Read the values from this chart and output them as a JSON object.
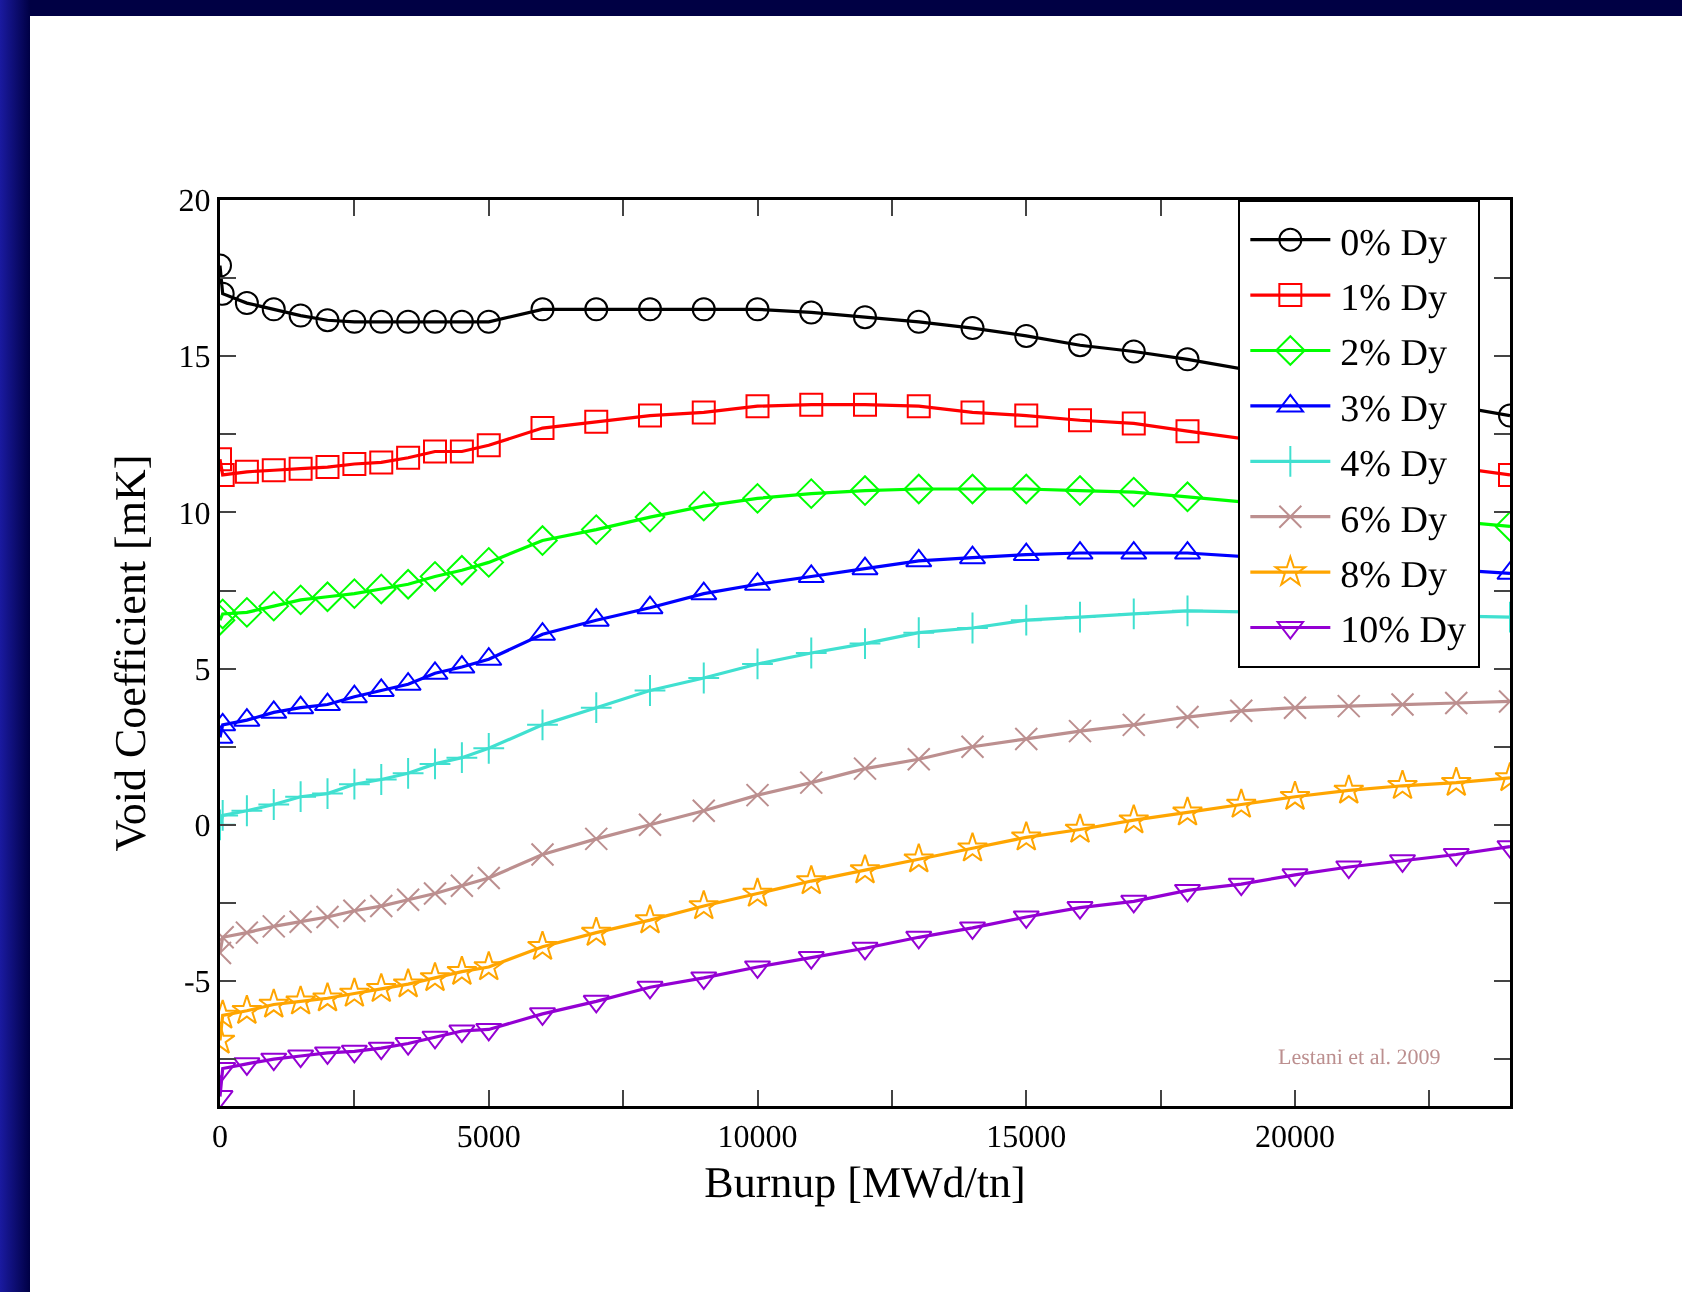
{
  "chart_data": {
    "type": "line",
    "xlabel": "Burnup [MWd/tn]",
    "ylabel": "Void Coefficient [mK]",
    "x": [
      0,
      50,
      500,
      1000,
      1500,
      2000,
      2500,
      3000,
      3500,
      4000,
      4500,
      5000,
      6000,
      7000,
      8000,
      9000,
      10000,
      11000,
      12000,
      13000,
      14000,
      15000,
      16000,
      17000,
      18000,
      19000,
      20000,
      21000,
      22000,
      23000,
      24000
    ],
    "series": [
      {
        "name": "0% Dy",
        "color": "#000000",
        "marker": "circle",
        "values": [
          17.9,
          17.0,
          16.7,
          16.5,
          16.3,
          16.15,
          16.1,
          16.1,
          16.1,
          16.1,
          16.1,
          16.1,
          16.5,
          16.5,
          16.5,
          16.5,
          16.5,
          16.4,
          16.25,
          16.1,
          15.9,
          15.65,
          15.35,
          15.15,
          14.9,
          null,
          null,
          null,
          null,
          null,
          13.1
        ]
      },
      {
        "name": "1% Dy",
        "color": "#ff0000",
        "marker": "square",
        "values": [
          11.7,
          11.2,
          11.3,
          11.35,
          11.4,
          11.45,
          11.55,
          11.6,
          11.75,
          11.95,
          11.95,
          12.15,
          12.7,
          12.9,
          13.1,
          13.2,
          13.4,
          13.45,
          13.45,
          13.4,
          13.2,
          13.1,
          12.95,
          12.85,
          12.6,
          null,
          null,
          null,
          null,
          null,
          11.2
        ]
      },
      {
        "name": "2% Dy",
        "color": "#00ff00",
        "marker": "diamond",
        "values": [
          6.55,
          6.75,
          6.8,
          7.0,
          7.2,
          7.3,
          7.4,
          7.55,
          7.7,
          7.95,
          8.15,
          8.4,
          9.1,
          9.45,
          9.85,
          10.2,
          10.45,
          10.6,
          10.7,
          10.75,
          10.75,
          10.75,
          10.7,
          10.65,
          10.5,
          null,
          null,
          null,
          null,
          null,
          9.55
        ]
      },
      {
        "name": "3% Dy",
        "color": "#0000ff",
        "marker": "triangle",
        "values": [
          2.8,
          3.2,
          3.35,
          3.6,
          3.75,
          3.85,
          4.1,
          4.3,
          4.5,
          4.85,
          5.05,
          5.3,
          6.1,
          6.55,
          6.95,
          7.4,
          7.7,
          7.95,
          8.2,
          8.45,
          8.55,
          8.65,
          8.7,
          8.7,
          8.7,
          null,
          null,
          null,
          null,
          null,
          8.05
        ]
      },
      {
        "name": "4% Dy",
        "color": "#40e0d0",
        "marker": "cross",
        "values": [
          0.0,
          0.3,
          0.45,
          0.65,
          0.9,
          1.0,
          1.3,
          1.45,
          1.65,
          1.95,
          2.15,
          2.45,
          3.2,
          3.75,
          4.3,
          4.7,
          5.15,
          5.5,
          5.8,
          6.15,
          6.3,
          6.55,
          6.65,
          6.75,
          6.85,
          null,
          null,
          null,
          null,
          null,
          6.65
        ]
      },
      {
        "name": "6% Dy",
        "color": "#bc8f8f",
        "marker": "x",
        "values": [
          -4.1,
          -3.6,
          -3.45,
          -3.25,
          -3.1,
          -2.95,
          -2.75,
          -2.6,
          -2.4,
          -2.2,
          -1.95,
          -1.7,
          -0.95,
          -0.45,
          0.0,
          0.45,
          0.95,
          1.35,
          1.8,
          2.1,
          2.5,
          2.75,
          3.0,
          3.2,
          3.45,
          3.65,
          3.75,
          3.8,
          3.85,
          3.9,
          3.95
        ]
      },
      {
        "name": "8% Dy",
        "color": "#ffa500",
        "marker": "star",
        "values": [
          -6.9,
          -6.1,
          -5.95,
          -5.75,
          -5.65,
          -5.55,
          -5.4,
          -5.25,
          -5.1,
          -4.9,
          -4.7,
          -4.55,
          -3.9,
          -3.45,
          -3.05,
          -2.6,
          -2.2,
          -1.8,
          -1.45,
          -1.1,
          -0.75,
          -0.4,
          -0.15,
          0.15,
          0.4,
          0.65,
          0.9,
          1.1,
          1.25,
          1.35,
          1.5
        ]
      },
      {
        "name": "10% Dy",
        "color": "#9400d3",
        "marker": "triangle-down",
        "values": [
          -8.7,
          -7.8,
          -7.65,
          -7.5,
          -7.4,
          -7.3,
          -7.25,
          -7.15,
          -7.0,
          -6.8,
          -6.6,
          -6.55,
          -6.05,
          -5.65,
          -5.2,
          -4.9,
          -4.55,
          -4.25,
          -3.95,
          -3.6,
          -3.3,
          -2.95,
          -2.65,
          -2.45,
          -2.1,
          -1.9,
          -1.6,
          -1.35,
          -1.15,
          -0.95,
          -0.7
        ]
      }
    ],
    "xlim": [
      0,
      24000
    ],
    "xticks": [
      0,
      {
        "value": 2500,
        "label": null
      },
      5000,
      {
        "value": 7500,
        "label": null
      },
      10000,
      {
        "value": 12500,
        "label": null
      },
      15000,
      {
        "value": 17500,
        "label": null
      },
      20000,
      {
        "value": 22500,
        "label": null
      }
    ],
    "ylim": [
      -9,
      20
    ],
    "yticks": [
      {
        "value": -7.5,
        "label": null
      },
      -5,
      {
        "value": -2.5,
        "label": null
      },
      0,
      {
        "value": 2.5,
        "label": null
      },
      5,
      {
        "value": 7.5,
        "label": null
      },
      10,
      {
        "value": 12.5,
        "label": null
      },
      15,
      {
        "value": 17.5,
        "label": null
      },
      20
    ],
    "grid": false,
    "legend": "top right",
    "line_style": "solid",
    "annotations": [
      "Lestani et al. 2009"
    ]
  }
}
